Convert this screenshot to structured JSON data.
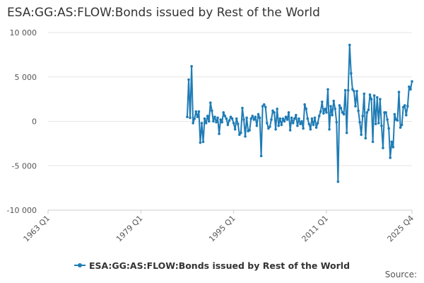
{
  "chart_data": {
    "type": "line",
    "title": "ESA:GG:AS:FLOW:Bonds issued by Rest of the World",
    "xlabel": "",
    "ylabel": "",
    "x_range": [
      "1963 Q1",
      "2025 Q4"
    ],
    "xticks": [
      "1963 Q1",
      "1979 Q1",
      "1995 Q1",
      "2011 Q1",
      "2025 Q4"
    ],
    "yticks": [
      "10 000",
      "5 000",
      "0",
      "-5 000",
      "-10 000"
    ],
    "ylim": [
      -10000,
      10000
    ],
    "grid": "horizontal",
    "legend_position": "bottom",
    "source_label": "Source:",
    "series": [
      {
        "name": "ESA:GG:AS:FLOW:Bonds issued by Rest of the World",
        "color": "#1f7cb5",
        "points": [
          [
            "1987 Q1",
            500
          ],
          [
            "1987 Q2",
            4700
          ],
          [
            "1987 Q3",
            400
          ],
          [
            "1987 Q4",
            6200
          ],
          [
            "1988 Q1",
            -200
          ],
          [
            "1988 Q2",
            300
          ],
          [
            "1988 Q3",
            1100
          ],
          [
            "1988 Q4",
            500
          ],
          [
            "1989 Q1",
            1100
          ],
          [
            "1989 Q2",
            -2400
          ],
          [
            "1989 Q3",
            -200
          ],
          [
            "1989 Q4",
            -2300
          ],
          [
            "1990 Q1",
            300
          ],
          [
            "1990 Q2",
            -200
          ],
          [
            "1990 Q3",
            600
          ],
          [
            "1990 Q4",
            0
          ],
          [
            "1991 Q1",
            2100
          ],
          [
            "1991 Q2",
            1200
          ],
          [
            "1991 Q3",
            0
          ],
          [
            "1991 Q4",
            500
          ],
          [
            "1992 Q1",
            -100
          ],
          [
            "1992 Q2",
            400
          ],
          [
            "1992 Q3",
            -1400
          ],
          [
            "1992 Q4",
            200
          ],
          [
            "1993 Q1",
            -100
          ],
          [
            "1993 Q2",
            1000
          ],
          [
            "1993 Q3",
            600
          ],
          [
            "1993 Q4",
            300
          ],
          [
            "1994 Q1",
            -400
          ],
          [
            "1994 Q2",
            100
          ],
          [
            "1994 Q3",
            500
          ],
          [
            "1994 Q4",
            300
          ],
          [
            "1995 Q1",
            -200
          ],
          [
            "1995 Q2",
            -900
          ],
          [
            "1995 Q3",
            300
          ],
          [
            "1995 Q4",
            -300
          ],
          [
            "1996 Q1",
            -1500
          ],
          [
            "1996 Q2",
            -1300
          ],
          [
            "1996 Q3",
            1500
          ],
          [
            "1996 Q4",
            200
          ],
          [
            "1997 Q1",
            -1700
          ],
          [
            "1997 Q2",
            400
          ],
          [
            "1997 Q3",
            -1100
          ],
          [
            "1997 Q4",
            -1000
          ],
          [
            "1998 Q1",
            300
          ],
          [
            "1998 Q2",
            600
          ],
          [
            "1998 Q3",
            200
          ],
          [
            "1998 Q4",
            500
          ],
          [
            "1999 Q1",
            -500
          ],
          [
            "1999 Q2",
            800
          ],
          [
            "1999 Q3",
            400
          ],
          [
            "1999 Q4",
            -3900
          ],
          [
            "2000 Q1",
            1700
          ],
          [
            "2000 Q2",
            1900
          ],
          [
            "2000 Q3",
            1600
          ],
          [
            "2000 Q4",
            -200
          ],
          [
            "2001 Q1",
            -800
          ],
          [
            "2001 Q2",
            -600
          ],
          [
            "2001 Q3",
            200
          ],
          [
            "2001 Q4",
            1200
          ],
          [
            "2002 Q1",
            1000
          ],
          [
            "2002 Q2",
            -900
          ],
          [
            "2002 Q3",
            1400
          ],
          [
            "2002 Q4",
            -500
          ],
          [
            "2003 Q1",
            300
          ],
          [
            "2003 Q2",
            -400
          ],
          [
            "2003 Q3",
            300
          ],
          [
            "2003 Q4",
            0
          ],
          [
            "2004 Q1",
            500
          ],
          [
            "2004 Q2",
            200
          ],
          [
            "2004 Q3",
            1000
          ],
          [
            "2004 Q4",
            -1000
          ],
          [
            "2005 Q1",
            400
          ],
          [
            "2005 Q2",
            -200
          ],
          [
            "2005 Q3",
            300
          ],
          [
            "2005 Q4",
            700
          ],
          [
            "2006 Q1",
            -500
          ],
          [
            "2006 Q2",
            300
          ],
          [
            "2006 Q3",
            -300
          ],
          [
            "2006 Q4",
            0
          ],
          [
            "2007 Q1",
            -800
          ],
          [
            "2007 Q2",
            1900
          ],
          [
            "2007 Q3",
            1400
          ],
          [
            "2007 Q4",
            300
          ],
          [
            "2008 Q1",
            -300
          ],
          [
            "2008 Q2",
            -900
          ],
          [
            "2008 Q3",
            300
          ],
          [
            "2008 Q4",
            -400
          ],
          [
            "2009 Q1",
            400
          ],
          [
            "2009 Q2",
            -700
          ],
          [
            "2009 Q3",
            -200
          ],
          [
            "2009 Q4",
            600
          ],
          [
            "2010 Q1",
            1100
          ],
          [
            "2010 Q2",
            2200
          ],
          [
            "2010 Q3",
            900
          ],
          [
            "2010 Q4",
            1400
          ],
          [
            "2011 Q1",
            1000
          ],
          [
            "2011 Q2",
            3600
          ],
          [
            "2011 Q3",
            -900
          ],
          [
            "2011 Q4",
            1700
          ],
          [
            "2012 Q1",
            700
          ],
          [
            "2012 Q2",
            2300
          ],
          [
            "2012 Q3",
            1400
          ],
          [
            "2012 Q4",
            -100
          ],
          [
            "2013 Q1",
            -6800
          ],
          [
            "2013 Q2",
            1800
          ],
          [
            "2013 Q3",
            1500
          ],
          [
            "2013 Q4",
            1000
          ],
          [
            "2014 Q1",
            800
          ],
          [
            "2014 Q2",
            3500
          ],
          [
            "2014 Q3",
            -1300
          ],
          [
            "2014 Q4",
            3500
          ],
          [
            "2015 Q1",
            8600
          ],
          [
            "2015 Q2",
            5400
          ],
          [
            "2015 Q3",
            3600
          ],
          [
            "2015 Q4",
            3400
          ],
          [
            "2016 Q1",
            1700
          ],
          [
            "2016 Q2",
            3400
          ],
          [
            "2016 Q3",
            1200
          ],
          [
            "2016 Q4",
            -100
          ],
          [
            "2017 Q1",
            -1500
          ],
          [
            "2017 Q2",
            600
          ],
          [
            "2017 Q3",
            3100
          ],
          [
            "2017 Q4",
            -1900
          ],
          [
            "2018 Q1",
            1000
          ],
          [
            "2018 Q2",
            1300
          ],
          [
            "2018 Q3",
            3000
          ],
          [
            "2018 Q4",
            2500
          ],
          [
            "2019 Q1",
            -2300
          ],
          [
            "2019 Q2",
            2900
          ],
          [
            "2019 Q3",
            -300
          ],
          [
            "2019 Q4",
            2700
          ],
          [
            "2020 Q1",
            -200
          ],
          [
            "2020 Q2",
            2500
          ],
          [
            "2020 Q3",
            -500
          ],
          [
            "2020 Q4",
            -3000
          ],
          [
            "2021 Q1",
            1000
          ],
          [
            "2021 Q2",
            1000
          ],
          [
            "2021 Q3",
            200
          ],
          [
            "2021 Q4",
            -800
          ],
          [
            "2022 Q1",
            -4100
          ],
          [
            "2022 Q2",
            -2300
          ],
          [
            "2022 Q3",
            -2900
          ],
          [
            "2022 Q4",
            800
          ],
          [
            "2023 Q1",
            200
          ],
          [
            "2023 Q2",
            100
          ],
          [
            "2023 Q3",
            3300
          ],
          [
            "2023 Q4",
            -700
          ],
          [
            "2024 Q1",
            -400
          ],
          [
            "2024 Q2",
            1600
          ],
          [
            "2024 Q3",
            1800
          ],
          [
            "2024 Q4",
            700
          ],
          [
            "2025 Q1",
            1700
          ],
          [
            "2025 Q2",
            3900
          ],
          [
            "2025 Q3",
            3600
          ],
          [
            "2025 Q4",
            4500
          ]
        ]
      }
    ]
  }
}
